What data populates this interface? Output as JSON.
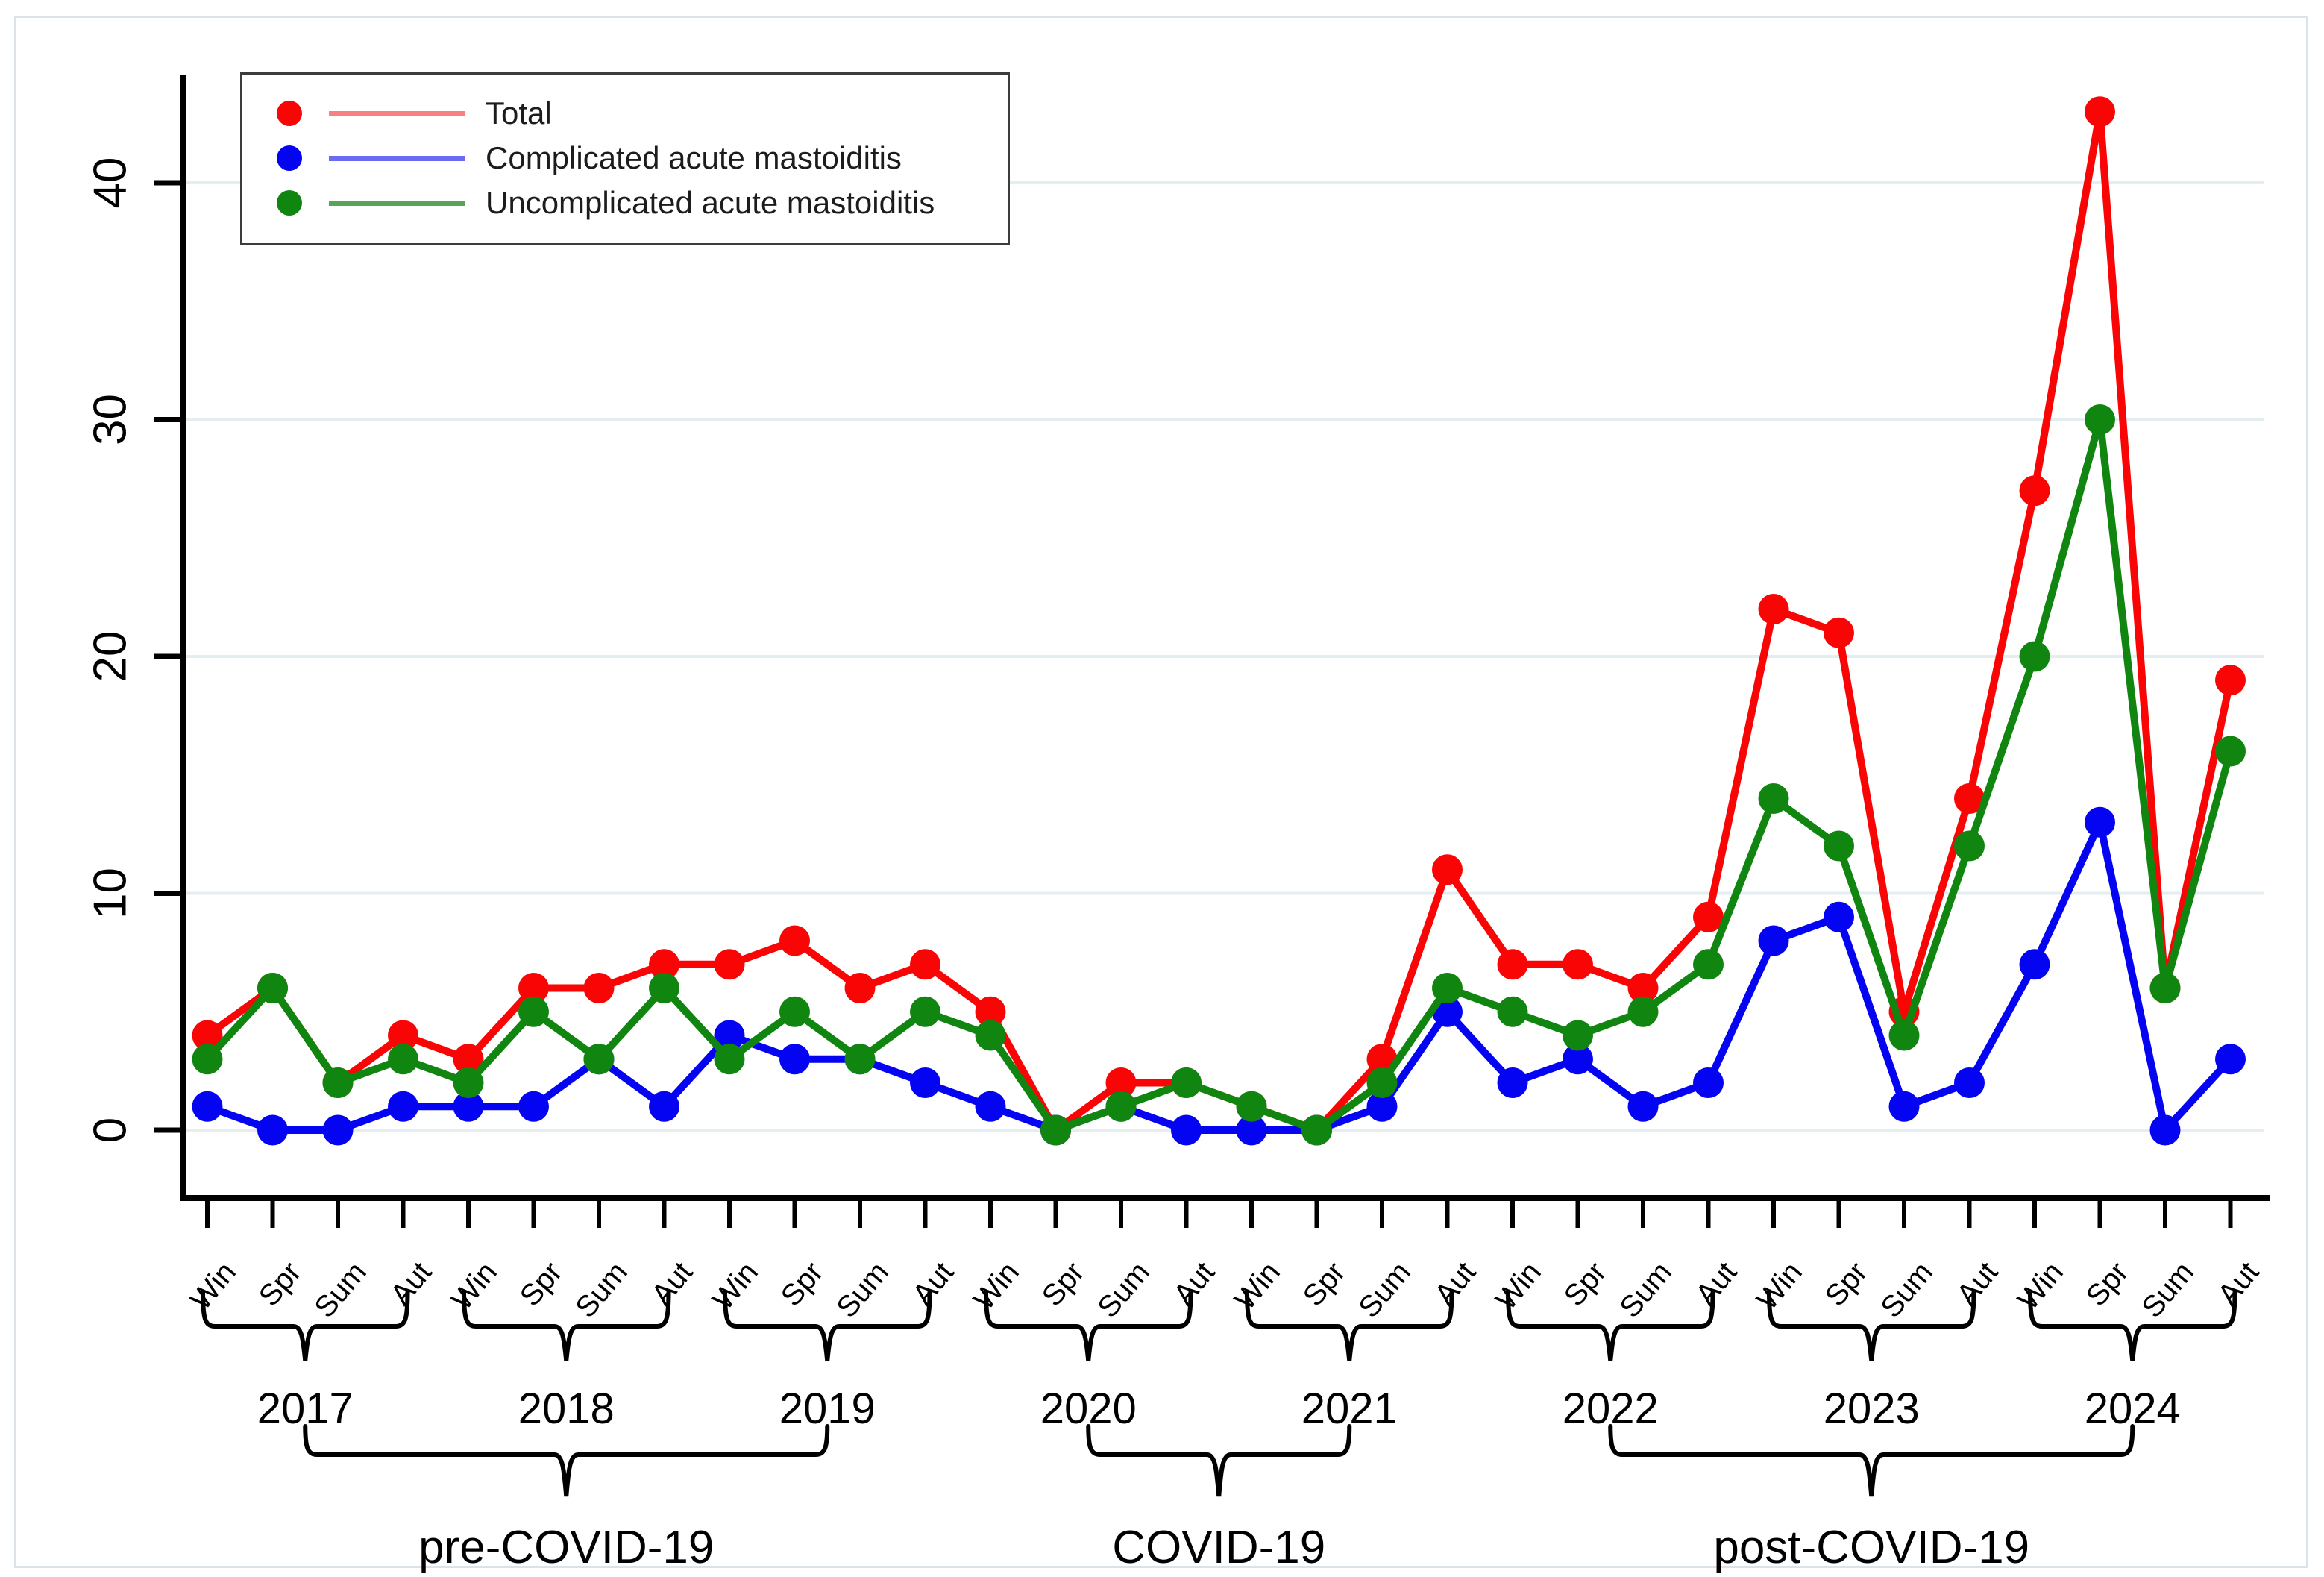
{
  "figure": {
    "background": "#ffffff",
    "frame_color": "#dbe3e8",
    "axis_color": "#000000",
    "text_color": "#000000"
  },
  "chart_data": {
    "type": "line",
    "title": "",
    "xlabel": "",
    "ylabel": "",
    "grid": true,
    "grid_color": "#e4edf0",
    "legend_position": "top-left",
    "yticks": [
      0,
      10,
      20,
      30,
      40
    ],
    "ylim": [
      0,
      43
    ],
    "categories": [
      "Win",
      "Spr",
      "Sum",
      "Aut",
      "Win",
      "Spr",
      "Sum",
      "Aut",
      "Win",
      "Spr",
      "Sum",
      "Aut",
      "Win",
      "Spr",
      "Sum",
      "Aut",
      "Win",
      "Spr",
      "Sum",
      "Aut",
      "Win",
      "Spr",
      "Sum",
      "Aut",
      "Win",
      "Spr",
      "Sum",
      "Aut",
      "Win",
      "Spr",
      "Sum",
      "Aut"
    ],
    "year_groups": [
      {
        "label": "2017",
        "start": 0,
        "end": 3
      },
      {
        "label": "2018",
        "start": 4,
        "end": 7
      },
      {
        "label": "2019",
        "start": 8,
        "end": 11
      },
      {
        "label": "2020",
        "start": 12,
        "end": 15
      },
      {
        "label": "2021",
        "start": 16,
        "end": 19
      },
      {
        "label": "2022",
        "start": 20,
        "end": 23
      },
      {
        "label": "2023",
        "start": 24,
        "end": 27
      },
      {
        "label": "2024",
        "start": 28,
        "end": 31
      }
    ],
    "period_groups": [
      {
        "label": "pre-COVID-19",
        "start_year": 0,
        "end_year": 2
      },
      {
        "label": "COVID-19",
        "start_year": 3,
        "end_year": 4
      },
      {
        "label": "post-COVID-19",
        "start_year": 5,
        "end_year": 7
      }
    ],
    "series": [
      {
        "name": "Total",
        "color": "#fa0505",
        "legend_line_color": "#f88080",
        "values": [
          4,
          6,
          2,
          4,
          3,
          6,
          6,
          7,
          7,
          8,
          6,
          7,
          5,
          0,
          2,
          2,
          1,
          0,
          3,
          11,
          7,
          7,
          6,
          9,
          22,
          21,
          5,
          14,
          27,
          43,
          6,
          19
        ]
      },
      {
        "name": "Complicated acute mastoiditis",
        "color": "#0404f2",
        "legend_line_color": "#6a6af2",
        "values": [
          1,
          0,
          0,
          1,
          1,
          1,
          3,
          1,
          4,
          3,
          3,
          2,
          1,
          0,
          1,
          0,
          0,
          0,
          1,
          5,
          2,
          3,
          1,
          2,
          8,
          9,
          1,
          2,
          7,
          13,
          0,
          3
        ]
      },
      {
        "name": "Uncomplicated acute mastoiditis",
        "color": "#108510",
        "legend_line_color": "#57a657",
        "values": [
          3,
          6,
          2,
          3,
          2,
          5,
          3,
          6,
          3,
          5,
          3,
          5,
          4,
          0,
          1,
          2,
          1,
          0,
          2,
          6,
          5,
          4,
          5,
          7,
          14,
          12,
          4,
          12,
          20,
          30,
          6,
          16
        ]
      }
    ]
  }
}
